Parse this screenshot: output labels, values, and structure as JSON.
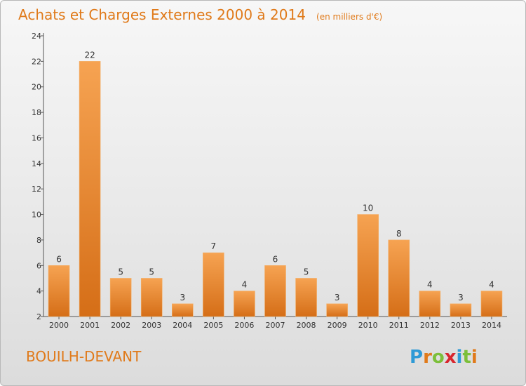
{
  "chart_data": {
    "type": "bar",
    "title": "Achats et Charges Externes 2000 à 2014",
    "subtitle": "(en milliers d'€)",
    "categories": [
      "2000",
      "2001",
      "2002",
      "2003",
      "2004",
      "2005",
      "2006",
      "2007",
      "2008",
      "2009",
      "2010",
      "2011",
      "2012",
      "2013",
      "2014"
    ],
    "values": [
      6,
      22,
      5,
      5,
      3,
      7,
      4,
      6,
      5,
      3,
      10,
      8,
      4,
      3,
      4
    ],
    "ylim": [
      2,
      24
    ],
    "yticks": [
      2,
      4,
      6,
      8,
      10,
      12,
      14,
      16,
      18,
      20,
      22,
      24
    ],
    "grid": false,
    "legend": "none",
    "bar_color": "#e8832a"
  },
  "footer": {
    "place": "BOUILH-DEVANT",
    "logo_letters": [
      "P",
      "r",
      "o",
      "x",
      "i",
      "t",
      "i"
    ],
    "logo_colors": [
      "#2e9ad6",
      "#e07a1a",
      "#7cbf3a",
      "#d8262e",
      "#2e9ad6",
      "#7cbf3a",
      "#e07a1a"
    ]
  }
}
